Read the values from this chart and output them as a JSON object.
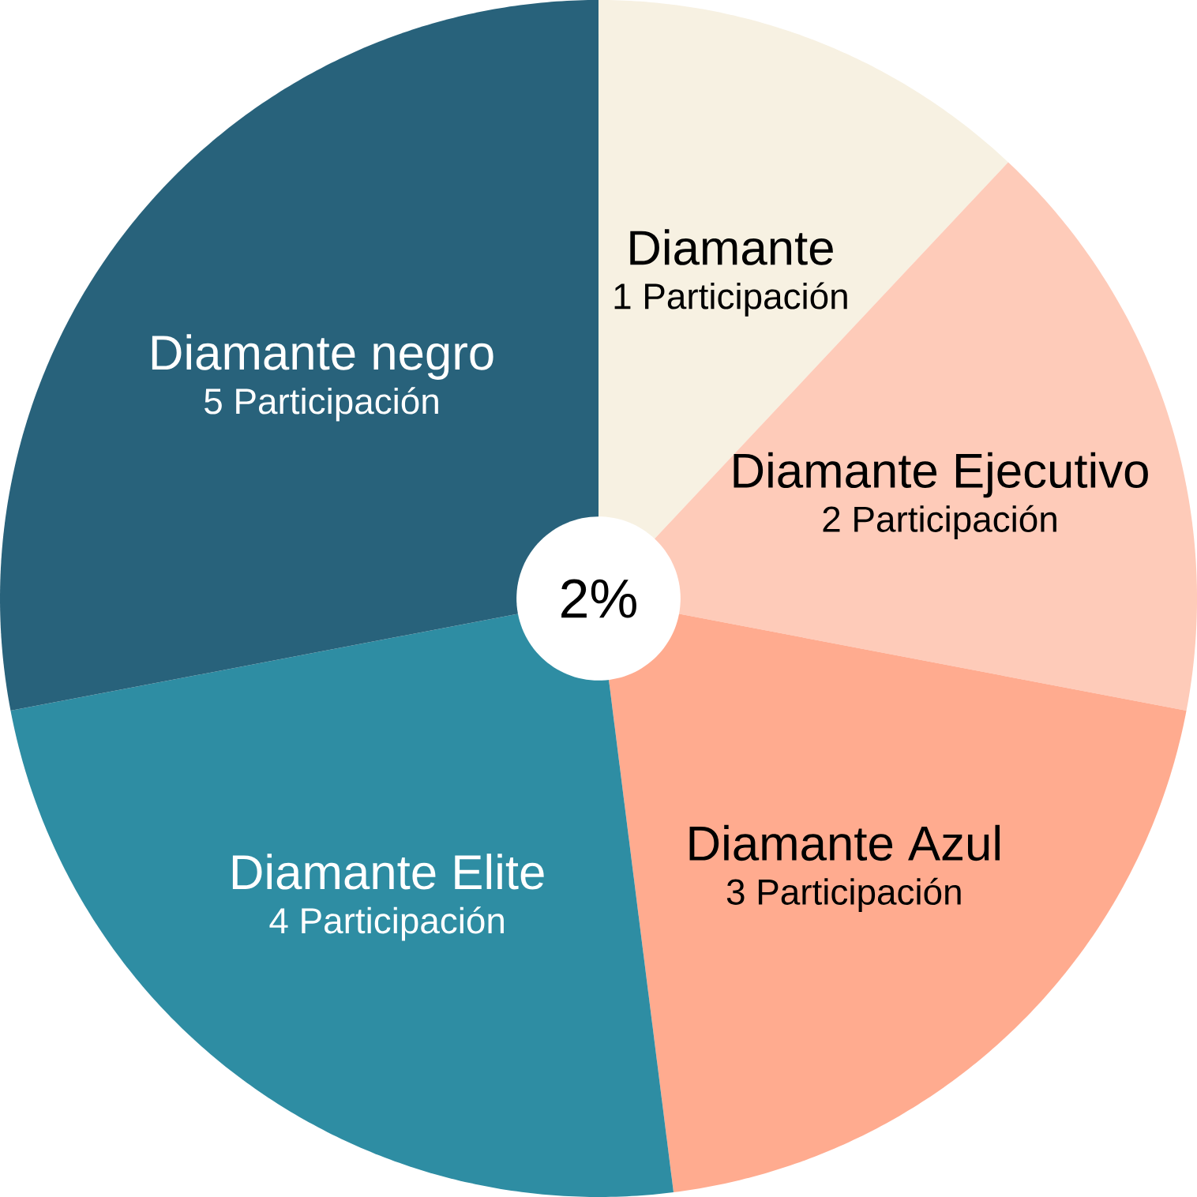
{
  "chart_data": {
    "type": "pie",
    "categories": [
      "Diamante",
      "Diamante Ejecutivo",
      "Diamante Azul",
      "Diamante Elite",
      "Diamante negro"
    ],
    "values": [
      12,
      16,
      20,
      24,
      28
    ],
    "colors": [
      "#f7f1e2",
      "#fecbb9",
      "#ffab8f",
      "#2e8da3",
      "#28627b"
    ],
    "annotations": [
      "2%",
      "1 Participación",
      "2 Participación",
      "3 Participación",
      "4 Participación",
      "5 Participación"
    ]
  }
}
